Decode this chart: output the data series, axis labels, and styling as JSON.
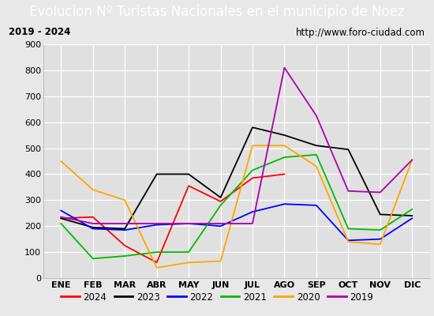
{
  "title": "Evolucion Nº Turistas Nacionales en el municipio de Noez",
  "subtitle_left": "2019 - 2024",
  "subtitle_right": "http://www.foro-ciudad.com",
  "months": [
    "ENE",
    "FEB",
    "MAR",
    "ABR",
    "MAY",
    "JUN",
    "JUL",
    "AGO",
    "SEP",
    "OCT",
    "NOV",
    "DIC"
  ],
  "series": {
    "2024": [
      230,
      235,
      125,
      60,
      355,
      295,
      385,
      400,
      null,
      null,
      null,
      null
    ],
    "2023": [
      230,
      195,
      190,
      400,
      400,
      310,
      580,
      550,
      510,
      495,
      245,
      240
    ],
    "2022": [
      260,
      190,
      185,
      205,
      210,
      200,
      255,
      285,
      280,
      145,
      150,
      230
    ],
    "2021": [
      210,
      75,
      85,
      100,
      100,
      280,
      415,
      465,
      475,
      190,
      185,
      265
    ],
    "2020": [
      450,
      340,
      300,
      40,
      60,
      65,
      510,
      510,
      430,
      140,
      130,
      455
    ],
    "2019": [
      235,
      210,
      210,
      210,
      210,
      210,
      210,
      810,
      625,
      335,
      330,
      455
    ]
  },
  "colors": {
    "2024": "#ff0000",
    "2023": "#000000",
    "2022": "#0000ff",
    "2021": "#00bb00",
    "2020": "#ffa500",
    "2019": "#aa00aa"
  },
  "ylim": [
    0,
    900
  ],
  "yticks": [
    0,
    100,
    200,
    300,
    400,
    500,
    600,
    700,
    800,
    900
  ],
  "title_bg_color": "#4472c4",
  "title_text_color": "#ffffff",
  "plot_bg_color": "#e0e0e0",
  "grid_color": "#ffffff",
  "title_fontsize": 12,
  "legend_order": [
    "2024",
    "2023",
    "2022",
    "2021",
    "2020",
    "2019"
  ],
  "outer_bg": "#e8e8e8"
}
